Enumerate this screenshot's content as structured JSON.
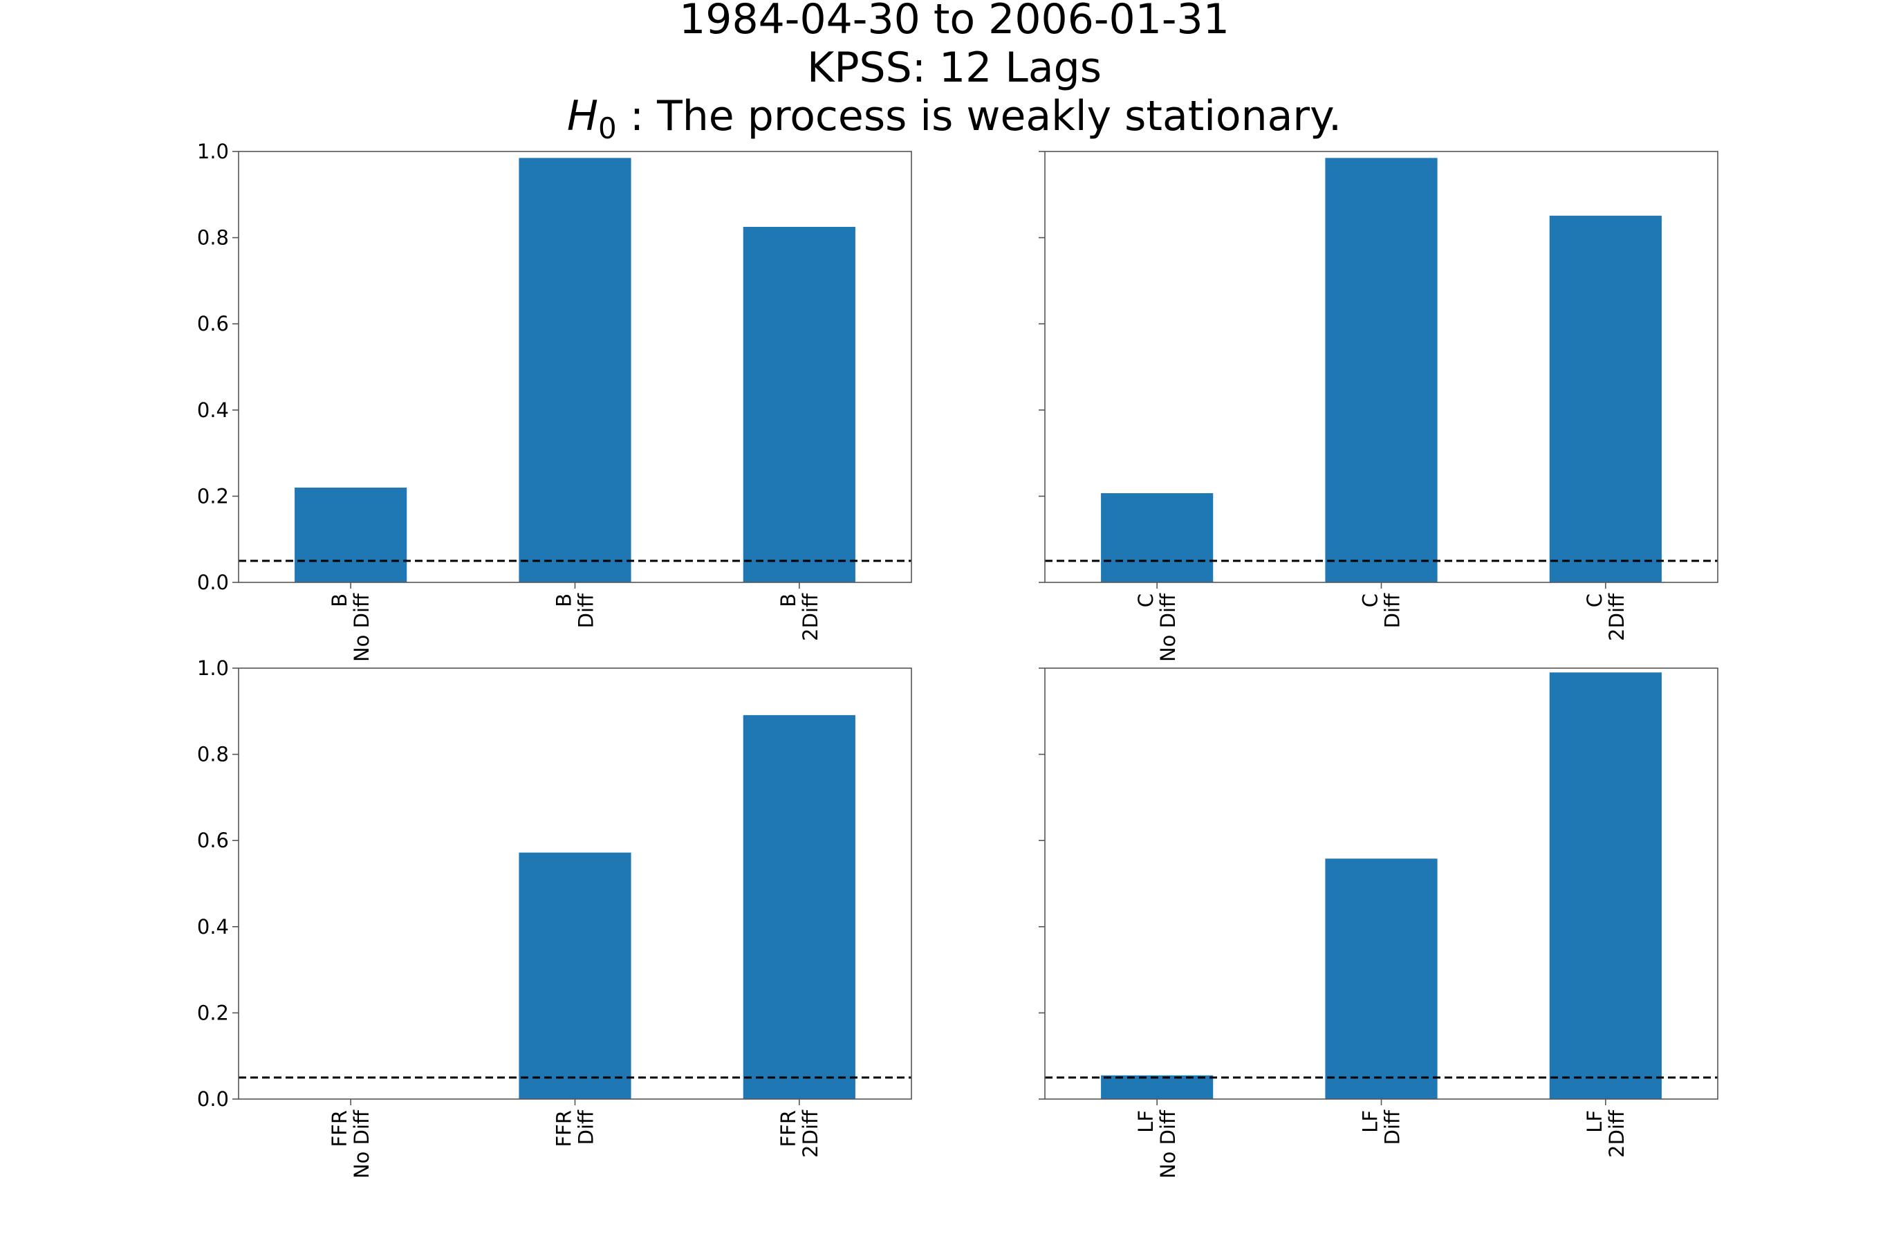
{
  "figure": {
    "title_line1": "1984-04-30 to 2006-01-31",
    "title_line2": "KPSS: 12 Lags",
    "title_h_symbol": "H",
    "title_h_subscript": "0",
    "title_h_text": " :  The process is weakly stationary."
  },
  "chart_data": [
    {
      "type": "bar",
      "categories": [
        [
          "B",
          "No Diff"
        ],
        [
          "B",
          "Diff"
        ],
        [
          "B",
          "2Diff"
        ]
      ],
      "values": [
        0.22,
        0.985,
        0.825
      ],
      "reference_line": 0.05,
      "ylim": [
        0,
        1.0
      ],
      "yticks": [
        "0.0",
        "0.2",
        "0.4",
        "0.6",
        "0.8",
        "1.0"
      ],
      "show_ytick_labels": true,
      "grid": false
    },
    {
      "type": "bar",
      "categories": [
        [
          "C",
          "No Diff"
        ],
        [
          "C",
          "Diff"
        ],
        [
          "C",
          "2Diff"
        ]
      ],
      "values": [
        0.207,
        0.985,
        0.851
      ],
      "reference_line": 0.05,
      "ylim": [
        0,
        1.0
      ],
      "yticks": [
        "0.0",
        "0.2",
        "0.4",
        "0.6",
        "0.8",
        "1.0"
      ],
      "show_ytick_labels": false,
      "grid": false
    },
    {
      "type": "bar",
      "categories": [
        [
          "FFR",
          "No Diff"
        ],
        [
          "FFR",
          "Diff"
        ],
        [
          "FFR",
          "2Diff"
        ]
      ],
      "values": [
        0.0,
        0.572,
        0.891
      ],
      "reference_line": 0.05,
      "ylim": [
        0,
        1.0
      ],
      "yticks": [
        "0.0",
        "0.2",
        "0.4",
        "0.6",
        "0.8",
        "1.0"
      ],
      "show_ytick_labels": true,
      "grid": false
    },
    {
      "type": "bar",
      "categories": [
        [
          "LF",
          "No Diff"
        ],
        [
          "LF",
          "Diff"
        ],
        [
          "LF",
          "2Diff"
        ]
      ],
      "values": [
        0.055,
        0.558,
        0.99
      ],
      "reference_line": 0.05,
      "ylim": [
        0,
        1.0
      ],
      "yticks": [
        "0.0",
        "0.2",
        "0.4",
        "0.6",
        "0.8",
        "1.0"
      ],
      "show_ytick_labels": false,
      "grid": false
    }
  ]
}
